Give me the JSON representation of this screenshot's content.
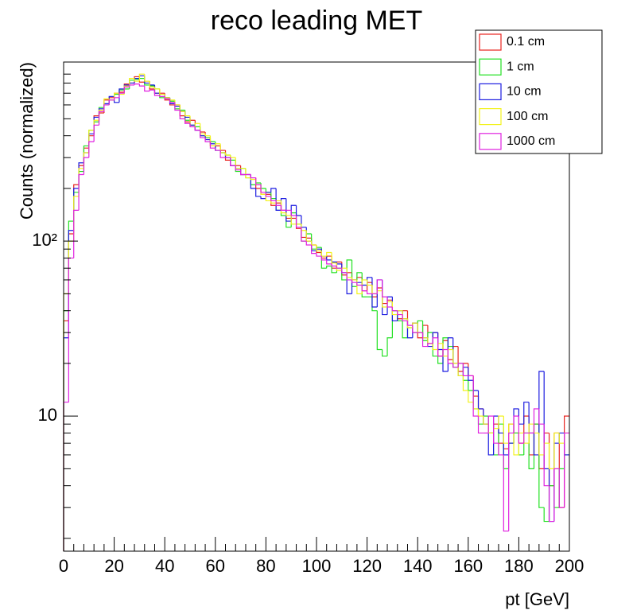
{
  "chart_data": {
    "type": "histogram",
    "title": "reco leading MET",
    "x_label": "pt [GeV]",
    "y_label": "Counts (normalized)",
    "log_y": true,
    "grid": false,
    "legend": "top-right",
    "bins": [
      0,
      2,
      4,
      6,
      8,
      10,
      12,
      14,
      16,
      18,
      20,
      22,
      24,
      26,
      28,
      30,
      32,
      34,
      36,
      38,
      40,
      42,
      44,
      46,
      48,
      50,
      52,
      54,
      56,
      58,
      60,
      62,
      64,
      66,
      68,
      70,
      72,
      74,
      76,
      78,
      80,
      82,
      84,
      86,
      88,
      90,
      92,
      94,
      96,
      98,
      100,
      102,
      104,
      106,
      108,
      110,
      112,
      114,
      116,
      118,
      120,
      122,
      124,
      126,
      128,
      130,
      132,
      134,
      136,
      138,
      140,
      142,
      144,
      146,
      148,
      150,
      152,
      154,
      156,
      158,
      160,
      162,
      164,
      166,
      168,
      170,
      172,
      174,
      176,
      178,
      180,
      182,
      184,
      186,
      188,
      190,
      192,
      194,
      196,
      198,
      200
    ],
    "xlim": [
      0,
      200
    ],
    "xticks": [
      0,
      20,
      40,
      60,
      80,
      100,
      120,
      140,
      160,
      180,
      200
    ],
    "ylim": [
      1.69,
      1055
    ],
    "yticks": [
      10,
      {
        "value": 100,
        "label": "10²"
      }
    ],
    "series": [
      {
        "name": "0.1 cm",
        "color": "#e8231f",
        "values": [
          35,
          110,
          210,
          270,
          340,
          400,
          520,
          540,
          640,
          660,
          700,
          710,
          790,
          800,
          870,
          810,
          820,
          740,
          700,
          700,
          640,
          600,
          600,
          520,
          480,
          490,
          430,
          420,
          390,
          350,
          350,
          330,
          290,
          270,
          270,
          240,
          240,
          230,
          200,
          185,
          185,
          160,
          165,
          150,
          135,
          135,
          118,
          105,
          104,
          95,
          86,
          80,
          82,
          70,
          76,
          64,
          66,
          60,
          62,
          52,
          58,
          48,
          54,
          44,
          46,
          40,
          36,
          40,
          33,
          34,
          28,
          33,
          26,
          30,
          22,
          27,
          21,
          25,
          18,
          20,
          17,
          13,
          11,
          9,
          8,
          9,
          7,
          6.5,
          9,
          8,
          7,
          10,
          6,
          9,
          5,
          8,
          4,
          8,
          3,
          10
        ]
      },
      {
        "name": "1 cm",
        "color": "#22e122",
        "values": [
          40,
          130,
          190,
          250,
          350,
          430,
          480,
          580,
          600,
          640,
          690,
          730,
          740,
          830,
          840,
          850,
          780,
          770,
          740,
          660,
          660,
          630,
          570,
          560,
          490,
          460,
          450,
          400,
          390,
          370,
          330,
          320,
          310,
          290,
          250,
          260,
          230,
          210,
          215,
          200,
          190,
          175,
          150,
          140,
          120,
          145,
          125,
          100,
          110,
          90,
          92,
          70,
          72,
          66,
          70,
          60,
          78,
          55,
          66,
          48,
          48,
          40,
          24,
          22,
          28,
          40,
          35,
          28,
          32,
          30,
          35,
          27,
          30,
          22,
          20,
          28,
          25,
          19,
          20,
          16,
          14,
          11,
          9,
          10,
          8,
          6,
          9,
          5,
          7,
          8,
          6,
          8,
          5,
          9,
          3,
          2.5,
          4,
          3,
          5,
          6
        ]
      },
      {
        "name": "10 cm",
        "color": "#1c1ce0",
        "values": [
          28,
          115,
          200,
          280,
          320,
          410,
          510,
          570,
          610,
          670,
          620,
          740,
          780,
          800,
          850,
          880,
          800,
          780,
          700,
          690,
          660,
          610,
          590,
          550,
          510,
          460,
          430,
          400,
          380,
          360,
          330,
          320,
          300,
          270,
          260,
          240,
          240,
          200,
          180,
          175,
          190,
          200,
          150,
          175,
          130,
          160,
          140,
          120,
          100,
          88,
          90,
          82,
          78,
          76,
          74,
          66,
          50,
          60,
          58,
          56,
          62,
          42,
          60,
          38,
          48,
          35,
          40,
          36,
          28,
          34,
          30,
          28,
          25,
          30,
          24,
          18,
          28,
          20,
          17,
          19,
          16,
          14,
          11,
          9,
          6,
          10,
          8,
          6,
          7,
          11,
          9,
          12,
          8,
          6,
          18,
          5,
          2.5,
          7,
          8,
          6
        ]
      },
      {
        "name": "100 cm",
        "color": "#f2f21a",
        "values": [
          50,
          100,
          180,
          260,
          320,
          430,
          490,
          560,
          650,
          640,
          700,
          690,
          770,
          850,
          820,
          900,
          820,
          760,
          740,
          690,
          660,
          640,
          600,
          550,
          520,
          450,
          470,
          410,
          400,
          350,
          360,
          320,
          310,
          300,
          260,
          260,
          230,
          225,
          210,
          185,
          170,
          165,
          170,
          145,
          140,
          125,
          125,
          115,
          100,
          95,
          88,
          82,
          86,
          75,
          68,
          70,
          62,
          60,
          50,
          60,
          56,
          50,
          52,
          42,
          45,
          38,
          40,
          36,
          32,
          34,
          30,
          28,
          26,
          24,
          26,
          22,
          24,
          20,
          17,
          14,
          12,
          11,
          10,
          9,
          8,
          8.5,
          10,
          7,
          9,
          6,
          8,
          7,
          9,
          8,
          6,
          7,
          5,
          8,
          7,
          8
        ]
      },
      {
        "name": "1000 cm",
        "color": "#e020e0",
        "values": [
          12,
          80,
          150,
          240,
          300,
          370,
          460,
          550,
          600,
          640,
          660,
          700,
          760,
          780,
          790,
          770,
          720,
          730,
          680,
          670,
          650,
          620,
          560,
          500,
          470,
          450,
          430,
          390,
          370,
          340,
          330,
          300,
          300,
          270,
          255,
          240,
          240,
          230,
          210,
          190,
          180,
          170,
          160,
          150,
          150,
          140,
          120,
          100,
          95,
          85,
          82,
          78,
          74,
          72,
          70,
          66,
          60,
          58,
          56,
          52,
          50,
          50,
          60,
          48,
          42,
          40,
          38,
          35,
          33,
          30,
          30,
          25,
          26,
          28,
          22,
          24,
          20,
          19,
          20,
          17,
          17,
          10,
          8,
          8,
          10,
          7,
          6,
          2.2,
          8,
          10,
          7,
          8,
          8,
          11,
          9,
          4,
          2.5,
          5,
          3,
          8
        ]
      }
    ]
  }
}
